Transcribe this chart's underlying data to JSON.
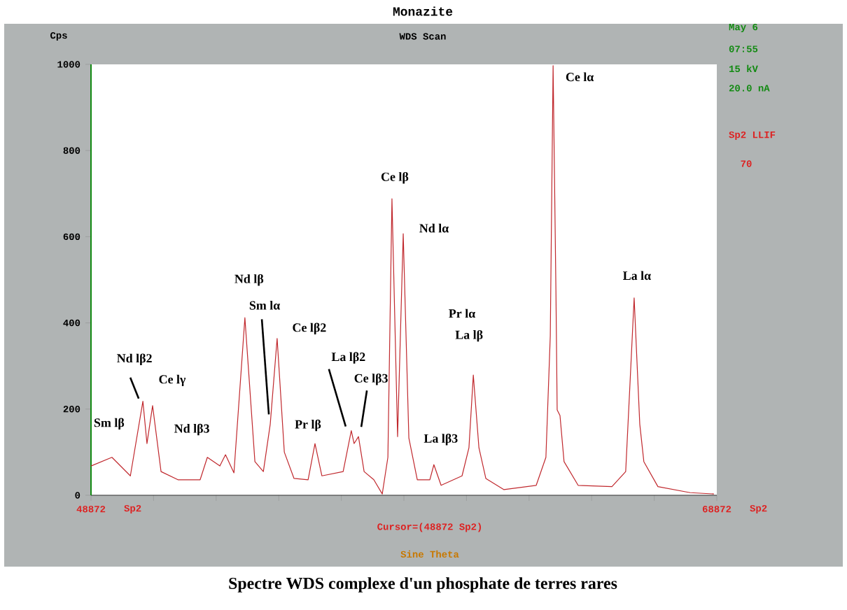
{
  "chart_data": {
    "type": "line",
    "title": "Monazite",
    "subtitle": "WDS Scan",
    "ylabel": "Cps",
    "xlabel": "Sine Theta",
    "x": [
      48872,
      49540,
      50130,
      50530,
      50660,
      50840,
      51110,
      51650,
      52360,
      52590,
      52990,
      53170,
      53440,
      53790,
      54110,
      54380,
      54600,
      54820,
      55050,
      55360,
      55810,
      56030,
      56250,
      56930,
      57190,
      57280,
      57420,
      57600,
      57910,
      58180,
      58360,
      58490,
      58670,
      58850,
      59030,
      59300,
      59700,
      59830,
      60060,
      60730,
      60950,
      61090,
      61270,
      61490,
      62070,
      63100,
      63410,
      63550,
      63640,
      63730,
      63770,
      63860,
      63990,
      64440,
      65520,
      65960,
      66100,
      66230,
      66410,
      66540,
      66990,
      68020,
      68780
    ],
    "series": [
      {
        "color": "#c0282d",
        "values": [
          68,
          88,
          45,
          218,
          120,
          208,
          55,
          36,
          36,
          88,
          68,
          94,
          52,
          412,
          78,
          55,
          165,
          364,
          100,
          39,
          36,
          120,
          45,
          55,
          150,
          120,
          136,
          55,
          36,
          3,
          88,
          688,
          136,
          607,
          133,
          36,
          36,
          71,
          23,
          45,
          110,
          279,
          110,
          39,
          13,
          23,
          88,
          370,
          997,
          477,
          198,
          185,
          78,
          23,
          20,
          55,
          263,
          458,
          165,
          78,
          20,
          6,
          3
        ]
      }
    ],
    "xlim": [
      48872,
      68872
    ],
    "xticks": [
      48872,
      {
        "value": 50872,
        "label": null
      },
      {
        "value": 52872,
        "label": null
      },
      {
        "value": 54872,
        "label": null
      },
      {
        "value": 56872,
        "label": null
      },
      {
        "value": 58872,
        "label": null
      },
      {
        "value": 60872,
        "label": null
      },
      {
        "value": 62872,
        "label": null
      },
      {
        "value": 64872,
        "label": null
      },
      {
        "value": 66872,
        "label": null
      },
      68872
    ],
    "ylim": [
      0,
      1000
    ],
    "yticks": [
      0,
      200,
      400,
      600,
      800,
      1000
    ],
    "line_style": "solid",
    "annotations": [
      {
        "text": "Sm lβ",
        "x": 49540,
        "y": 88
      },
      {
        "text": "Nd lβ2",
        "x": 50530,
        "y": 218
      },
      {
        "text": "Ce lγ",
        "x": 50840,
        "y": 208
      },
      {
        "text": "Nd lβ3",
        "x": 53170,
        "y": 94
      },
      {
        "text": "Nd lβ",
        "x": 53790,
        "y": 412
      },
      {
        "text": "Sm lα",
        "x": 54600,
        "y": 165
      },
      {
        "text": "Ce lβ2",
        "x": 54820,
        "y": 364
      },
      {
        "text": "Pr lβ",
        "x": 56030,
        "y": 120
      },
      {
        "text": "La lβ2",
        "x": 57190,
        "y": 150
      },
      {
        "text": "Ce lβ3",
        "x": 57420,
        "y": 136
      },
      {
        "text": "Ce lβ",
        "x": 58490,
        "y": 688
      },
      {
        "text": "Nd lα",
        "x": 58850,
        "y": 607
      },
      {
        "text": "La lβ3",
        "x": 59830,
        "y": 71
      },
      "Pr lα",
      {
        "text": "La lβ",
        "x": 61090,
        "y": 279
      },
      {
        "text": "Ce lα",
        "x": 63640,
        "y": 997
      },
      {
        "text": "La lα",
        "x": 66230,
        "y": 458
      },
      "May 6",
      "07:55",
      "15 kV",
      "20.0 nA",
      "Sp2 LLIF",
      "70",
      "Sp2",
      "Sp2",
      "Cursor=(48872 Sp2)",
      "Spectre WDS complexe d'un phosphate de terres rares"
    ]
  }
}
